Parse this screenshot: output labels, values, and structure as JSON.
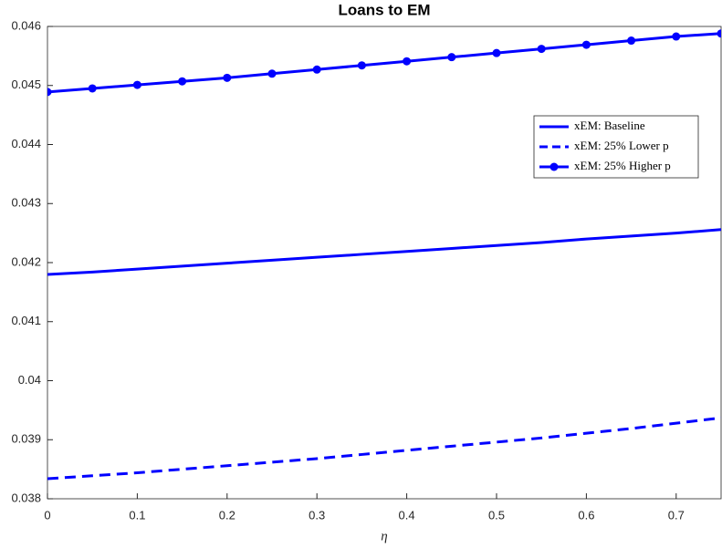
{
  "chart_data": {
    "type": "line",
    "title": "Loans to EM",
    "x_label": "η",
    "x": [
      0,
      0.05,
      0.1,
      0.15,
      0.2,
      0.25,
      0.3,
      0.35,
      0.4,
      0.45,
      0.5,
      0.55,
      0.6,
      0.65,
      0.7,
      0.75
    ],
    "series": [
      {
        "name": "xEM: Baseline",
        "color": "#0000ff",
        "style": "solid",
        "marker": false,
        "values": [
          0.0418,
          0.04184,
          0.04189,
          0.04194,
          0.04199,
          0.04204,
          0.04209,
          0.04214,
          0.04219,
          0.04224,
          0.04229,
          0.04234,
          0.0424,
          0.04245,
          0.0425,
          0.04256
        ]
      },
      {
        "name": "xEM: 25% Lower p",
        "color": "#0000ff",
        "style": "dashed",
        "marker": false,
        "values": [
          0.03834,
          0.03839,
          0.03844,
          0.0385,
          0.03856,
          0.03862,
          0.03868,
          0.03875,
          0.03882,
          0.03889,
          0.03896,
          0.03903,
          0.03911,
          0.03919,
          0.03928,
          0.03937
        ]
      },
      {
        "name": "xEM: 25% Higher p",
        "color": "#0000ff",
        "style": "solid",
        "marker": true,
        "values": [
          0.04489,
          0.04495,
          0.04501,
          0.04507,
          0.04513,
          0.0452,
          0.04527,
          0.04534,
          0.04541,
          0.04548,
          0.04555,
          0.04562,
          0.04569,
          0.04576,
          0.04583,
          0.04588
        ]
      }
    ],
    "xlim": [
      0,
      0.75
    ],
    "xticks": [
      0,
      0.1,
      0.2,
      0.3,
      0.4,
      0.5,
      0.6,
      0.7
    ],
    "ylim": [
      0.038,
      0.046
    ],
    "yticks": [
      0.038,
      0.039,
      0.04,
      0.041,
      0.042,
      0.043,
      0.044,
      0.045,
      0.046
    ],
    "grid": false,
    "legend_position": "upper right"
  }
}
